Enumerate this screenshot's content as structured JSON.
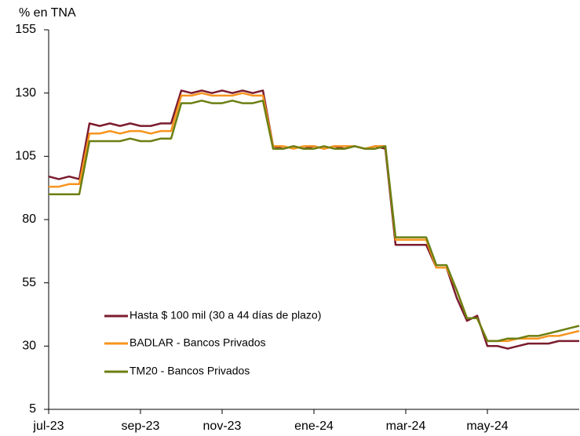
{
  "chart_data": {
    "type": "line",
    "y_label": "% en TNA",
    "categories": [
      "jul-23",
      null,
      null,
      null,
      null,
      null,
      null,
      null,
      null,
      "sep-23",
      null,
      null,
      null,
      null,
      null,
      null,
      null,
      "nov-23",
      null,
      null,
      null,
      null,
      null,
      null,
      null,
      null,
      "ene-24",
      null,
      null,
      null,
      null,
      null,
      null,
      null,
      null,
      "mar-24",
      null,
      null,
      null,
      null,
      null,
      null,
      null,
      "may-24",
      null,
      null,
      null,
      null,
      null,
      null,
      null,
      null,
      null
    ],
    "series": [
      {
        "name": "Hasta $ 100 mil (30 a 44 días de plazo)",
        "color": "#7b1c2e",
        "values": [
          97,
          96,
          97,
          96,
          118,
          117,
          118,
          117,
          118,
          117,
          117,
          118,
          118,
          131,
          130,
          131,
          130,
          131,
          130,
          131,
          130,
          131,
          109,
          108,
          109,
          108,
          109,
          108,
          109,
          108,
          109,
          108,
          109,
          108,
          70,
          70,
          70,
          70,
          61,
          61,
          49,
          40,
          42,
          30,
          30,
          29,
          30,
          31,
          31,
          31,
          32,
          32,
          32
        ]
      },
      {
        "name": "BADLAR - Bancos Privados",
        "color": "#f7941d",
        "values": [
          93,
          93,
          94,
          94,
          114,
          114,
          115,
          114,
          115,
          115,
          114,
          115,
          115,
          129,
          129,
          130,
          129,
          129,
          129,
          130,
          129,
          129,
          109,
          109,
          108,
          109,
          109,
          108,
          109,
          109,
          109,
          108,
          109,
          109,
          72,
          72,
          72,
          72,
          61,
          61,
          52,
          41,
          41,
          32,
          32,
          32,
          33,
          33,
          33,
          34,
          34,
          35,
          36
        ]
      },
      {
        "name": "TM20 - Bancos Privados",
        "color": "#6b7f12",
        "values": [
          90,
          90,
          90,
          90,
          111,
          111,
          111,
          111,
          112,
          111,
          111,
          112,
          112,
          126,
          126,
          127,
          126,
          126,
          127,
          126,
          126,
          127,
          108,
          108,
          109,
          108,
          108,
          109,
          108,
          108,
          109,
          108,
          108,
          109,
          73,
          73,
          73,
          73,
          62,
          62,
          52,
          41,
          41,
          32,
          32,
          33,
          33,
          34,
          34,
          35,
          36,
          37,
          38
        ]
      }
    ],
    "ylim": [
      5,
      155
    ],
    "yticks": [
      5,
      30,
      55,
      80,
      105,
      130,
      155
    ]
  }
}
